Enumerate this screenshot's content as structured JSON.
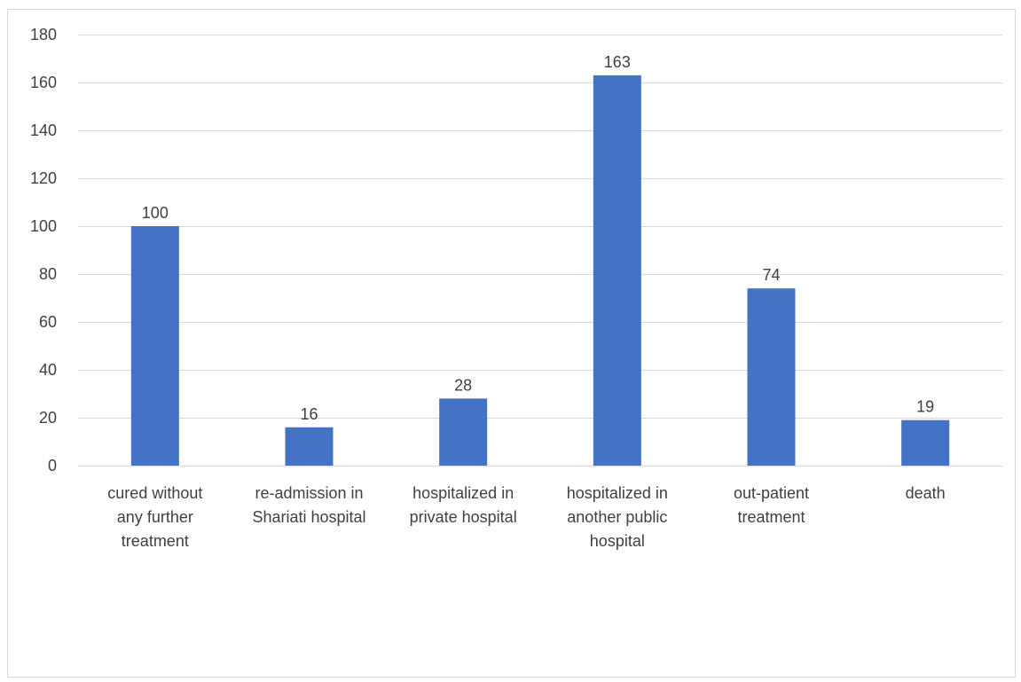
{
  "chart_data": {
    "type": "bar",
    "title": "",
    "xlabel": "",
    "ylabel": "",
    "categories": [
      "cured without any further treatment",
      "re-admission in Shariati hospital",
      "hospitalized in private hospital",
      "hospitalized in another public hospital",
      "out-patient treatment",
      "death"
    ],
    "category_lines": [
      [
        "cured without",
        "any further",
        "treatment"
      ],
      [
        "re-admission in",
        "Shariati hospital"
      ],
      [
        "hospitalized in",
        "private hospital"
      ],
      [
        "hospitalized in",
        "another public",
        "hospital"
      ],
      [
        "out-patient",
        "treatment"
      ],
      [
        "death"
      ]
    ],
    "values": [
      100,
      16,
      28,
      163,
      74,
      19
    ],
    "data_labels": [
      "100",
      "16",
      "28",
      "163",
      "74",
      "19"
    ],
    "ylim": [
      0,
      180
    ],
    "yticks": [
      "0",
      "20",
      "40",
      "60",
      "80",
      "100",
      "120",
      "140",
      "160",
      "180"
    ],
    "grid": true,
    "legend": "none",
    "bar_color": "#4472C4"
  }
}
